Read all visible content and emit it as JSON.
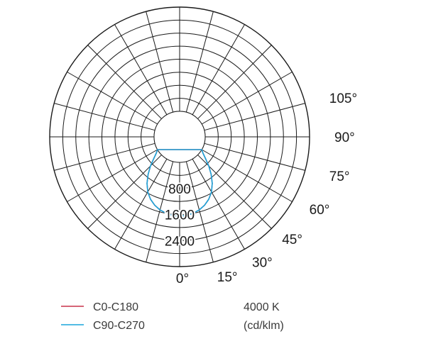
{
  "chart_data": {
    "type": "polar",
    "title": "",
    "unit": "(cd/klm)",
    "cct": "4000 K",
    "radial_ticks": [
      800,
      1600,
      2400
    ],
    "radial_max": 3200,
    "angle_labels": [
      "0°",
      "15°",
      "30°",
      "45°",
      "60°",
      "75°",
      "90°",
      "105°"
    ],
    "grid": true,
    "legend_position": "bottom-left",
    "series": [
      {
        "name": "C0-C180",
        "color": "#c8324a",
        "angles": [
          0,
          5,
          10,
          15,
          20,
          25,
          30,
          35,
          40,
          45,
          50,
          55,
          60
        ],
        "values": [
          1650,
          1640,
          1600,
          1540,
          1450,
          1330,
          1170,
          960,
          720,
          480,
          250,
          90,
          0
        ]
      },
      {
        "name": "C90-C270",
        "color": "#1aa6dc",
        "angles": [
          0,
          5,
          10,
          15,
          20,
          25,
          30,
          35,
          40,
          45,
          50,
          55,
          60
        ],
        "values": [
          1650,
          1640,
          1600,
          1540,
          1450,
          1330,
          1170,
          960,
          720,
          480,
          250,
          90,
          0
        ]
      }
    ]
  }
}
